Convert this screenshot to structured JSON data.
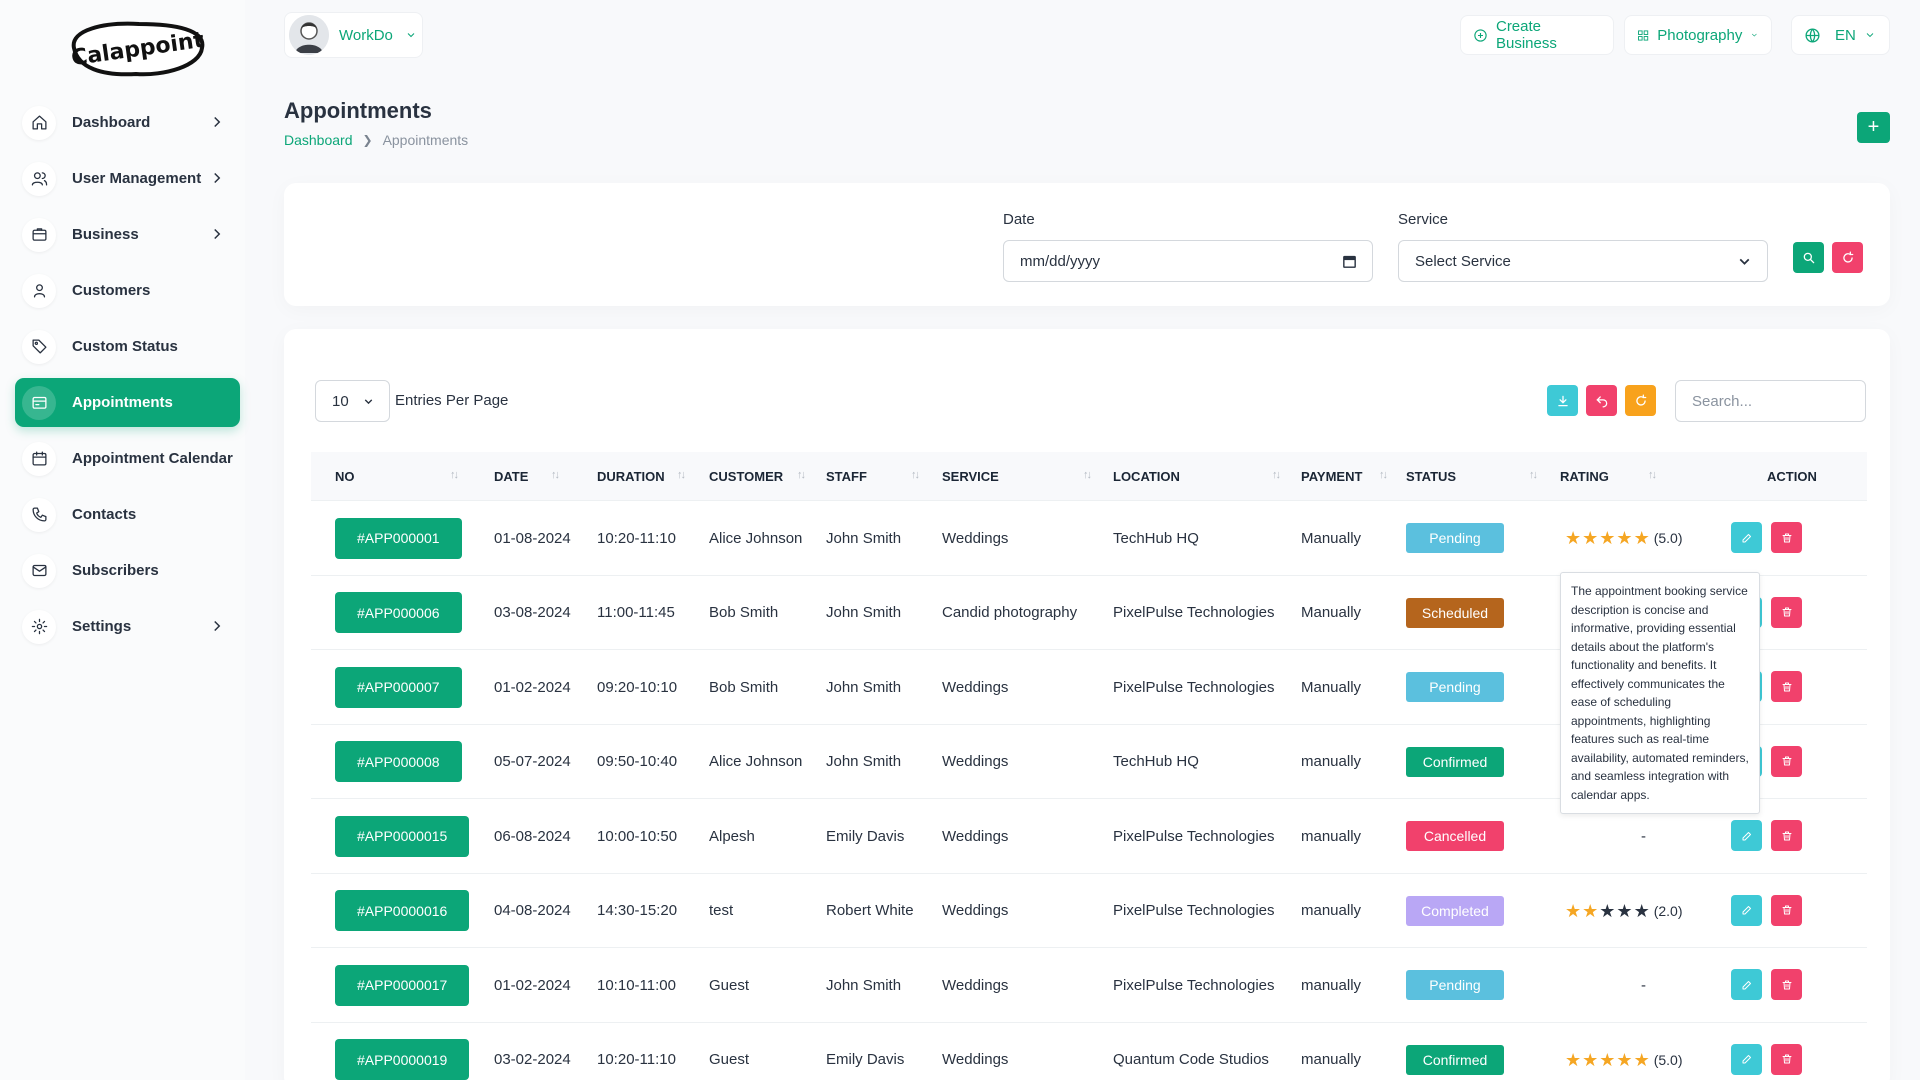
{
  "brand": {
    "logo_text": "Calappoint"
  },
  "sidebar": {
    "items": [
      {
        "label": "Dashboard"
      },
      {
        "label": "User Management"
      },
      {
        "label": "Business"
      },
      {
        "label": "Customers"
      },
      {
        "label": "Custom Status"
      },
      {
        "label": "Appointments"
      },
      {
        "label": "Appointment Calendar"
      },
      {
        "label": "Contacts"
      },
      {
        "label": "Subscribers"
      },
      {
        "label": "Settings"
      }
    ]
  },
  "header": {
    "user_name": "WorkDo",
    "create_business": "Create Business",
    "business_select": "Photography",
    "language": "EN"
  },
  "page": {
    "title": "Appointments",
    "breadcrumb_home": "Dashboard",
    "breadcrumb_current": "Appointments",
    "add_label": "+"
  },
  "filter": {
    "date_label": "Date",
    "date_placeholder": "mm/dd/yyyy",
    "service_label": "Service",
    "service_value": "Select Service"
  },
  "table": {
    "entries_value": "10",
    "entries_label": "Entries Per Page",
    "search_placeholder": "Search...",
    "columns": [
      "NO",
      "DATE",
      "DURATION",
      "CUSTOMER",
      "STAFF",
      "SERVICE",
      "LOCATION",
      "PAYMENT",
      "STATUS",
      "RATING",
      "ACTION"
    ],
    "rows": [
      {
        "id": "#APP000001",
        "date": "01-08-2024",
        "duration": "10:20-11:10",
        "customer": "Alice Johnson",
        "staff": "John Smith",
        "service": "Weddings",
        "location": "TechHub HQ",
        "payment": "Manually",
        "status": "Pending",
        "rating": "(5.0)",
        "rating_value": 5
      },
      {
        "id": "#APP000006",
        "date": "03-08-2024",
        "duration": "11:00-11:45",
        "customer": "Bob Smith",
        "staff": "John Smith",
        "service": "Candid photography",
        "location": "PixelPulse Technologies",
        "payment": "Manually",
        "status": "Scheduled",
        "rating": "",
        "rating_value": null
      },
      {
        "id": "#APP000007",
        "date": "01-02-2024",
        "duration": "09:20-10:10",
        "customer": "Bob Smith",
        "staff": "John Smith",
        "service": "Weddings",
        "location": "PixelPulse Technologies",
        "payment": "Manually",
        "status": "Pending",
        "rating": "",
        "rating_value": null
      },
      {
        "id": "#APP000008",
        "date": "05-07-2024",
        "duration": "09:50-10:40",
        "customer": "Alice Johnson",
        "staff": "John Smith",
        "service": "Weddings",
        "location": "TechHub HQ",
        "payment": "manually",
        "status": "Confirmed",
        "rating": "",
        "rating_value": null
      },
      {
        "id": "#APP0000015",
        "date": "06-08-2024",
        "duration": "10:00-10:50",
        "customer": "Alpesh",
        "staff": "Emily Davis",
        "service": "Weddings",
        "location": "PixelPulse Technologies",
        "payment": "manually",
        "status": "Cancelled",
        "rating": "-",
        "rating_value": null
      },
      {
        "id": "#APP0000016",
        "date": "04-08-2024",
        "duration": "14:30-15:20",
        "customer": "test",
        "staff": "Robert White",
        "service": "Weddings",
        "location": "PixelPulse Technologies",
        "payment": "manually",
        "status": "Completed",
        "rating": "(2.0)",
        "rating_value": 2
      },
      {
        "id": "#APP0000017",
        "date": "01-02-2024",
        "duration": "10:10-11:00",
        "customer": "Guest",
        "staff": "John Smith",
        "service": "Weddings",
        "location": "PixelPulse Technologies",
        "payment": "manually",
        "status": "Pending",
        "rating": "-",
        "rating_value": null
      },
      {
        "id": "#APP0000019",
        "date": "03-02-2024",
        "duration": "10:20-11:10",
        "customer": "Guest",
        "staff": "Emily Davis",
        "service": "Weddings",
        "location": "Quantum Code Studios",
        "payment": "manually",
        "status": "Confirmed",
        "rating": "(5.0)",
        "rating_value": 5
      }
    ]
  },
  "tooltip": {
    "text": "The appointment booking service description is concise and informative, providing essential details about the platform's functionality and benefits. It effectively communicates the ease of scheduling appointments, highlighting features such as real-time availability, automated reminders, and seamless integration with calendar apps."
  },
  "colors": {
    "accent": "#0ca678",
    "pending": "#5bc0de",
    "scheduled": "#b5651d",
    "confirmed": "#0ca678",
    "cancelled": "#f1416c",
    "completed": "#b9a7f5",
    "star_filled": "#f5a623",
    "star_empty": "#293240",
    "danger": "#f1416c",
    "info": "#3ec9d6",
    "warning": "#f8a21c"
  },
  "icons": {
    "nav": [
      "home-icon",
      "users-icon",
      "briefcase-icon",
      "user-icon",
      "tag-icon",
      "calendar-card-icon",
      "calendar-icon",
      "phone-icon",
      "mail-icon",
      "gear-icon"
    ],
    "actions": [
      "pencil-icon",
      "trash-icon"
    ]
  }
}
